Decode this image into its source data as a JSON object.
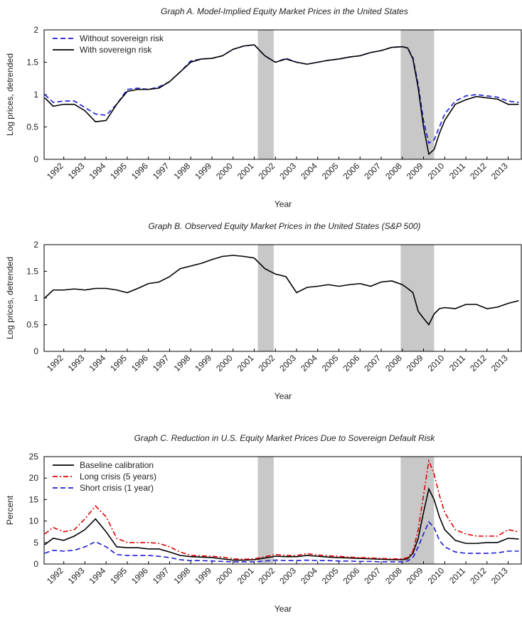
{
  "chart_data": [
    {
      "type": "line",
      "title": "Graph A. Model-Implied Equity Market Prices in the United States",
      "x_label": "Year",
      "y_label": "Log prices, detrended",
      "x": [
        1991.1,
        1991.5,
        1992,
        1992.5,
        1993,
        1993.5,
        1994,
        1994.5,
        1995,
        1995.5,
        1996,
        1996.5,
        1997,
        1997.5,
        1998,
        1998.5,
        1999,
        1999.5,
        2000,
        2000.5,
        2001,
        2001.5,
        2002,
        2002.5,
        2003,
        2003.5,
        2004,
        2004.5,
        2005,
        2005.5,
        2006,
        2006.5,
        2007,
        2007.5,
        2008,
        2008.25,
        2008.5,
        2008.75,
        2009,
        2009.25,
        2009.5,
        2009.75,
        2010,
        2010.5,
        2011,
        2011.5,
        2012,
        2012.5,
        2013,
        2013.5
      ],
      "series": [
        {
          "name": "Without sovereign risk",
          "color": "#1a1ad6",
          "style": "dashed",
          "values": [
            1.0,
            0.88,
            0.9,
            0.9,
            0.8,
            0.7,
            0.68,
            0.85,
            1.08,
            1.1,
            1.08,
            1.12,
            1.2,
            1.35,
            1.52,
            1.55,
            1.56,
            1.6,
            1.7,
            1.75,
            1.77,
            1.6,
            1.5,
            1.56,
            1.5,
            1.47,
            1.5,
            1.53,
            1.55,
            1.58,
            1.6,
            1.65,
            1.68,
            1.73,
            1.74,
            1.72,
            1.57,
            1.15,
            0.6,
            0.25,
            0.3,
            0.5,
            0.7,
            0.9,
            0.98,
            1.0,
            0.98,
            0.96,
            0.9,
            0.88
          ]
        },
        {
          "name": "With sovereign risk",
          "color": "#000000",
          "style": "solid",
          "values": [
            0.95,
            0.82,
            0.85,
            0.85,
            0.75,
            0.58,
            0.6,
            0.85,
            1.05,
            1.08,
            1.08,
            1.1,
            1.2,
            1.35,
            1.5,
            1.55,
            1.56,
            1.6,
            1.7,
            1.75,
            1.77,
            1.6,
            1.5,
            1.55,
            1.5,
            1.47,
            1.5,
            1.53,
            1.55,
            1.58,
            1.6,
            1.65,
            1.68,
            1.73,
            1.74,
            1.72,
            1.55,
            1.1,
            0.5,
            0.08,
            0.15,
            0.4,
            0.6,
            0.85,
            0.92,
            0.97,
            0.95,
            0.93,
            0.85,
            0.85
          ]
        }
      ],
      "xlim": [
        1991.07,
        2013.62
      ],
      "xticks": [
        1992,
        1993,
        1994,
        1995,
        1996,
        1997,
        1998,
        1999,
        2000,
        2001,
        2002,
        2003,
        2004,
        2005,
        2006,
        2007,
        2008,
        2009,
        2010,
        2011,
        2012,
        2013
      ],
      "ylim": [
        0,
        2
      ],
      "yticks": [
        0,
        0.5,
        1,
        1.5,
        2
      ],
      "legend": "upper left",
      "shaded_regions": [
        [
          2001.17,
          2001.92
        ],
        [
          2007.92,
          2009.5
        ]
      ],
      "shade_color": "#c8c8c8"
    },
    {
      "type": "line",
      "title": "Graph B. Observed Equity Market Prices in the United States (S&P 500)",
      "x_label": "Year",
      "y_label": "Log prices, detrended",
      "x": [
        1991.1,
        1991.5,
        1992,
        1992.5,
        1993,
        1993.5,
        1994,
        1994.5,
        1995,
        1995.5,
        1996,
        1996.5,
        1997,
        1997.5,
        1998,
        1998.5,
        1999,
        1999.5,
        2000,
        2000.5,
        2001,
        2001.5,
        2002,
        2002.5,
        2003,
        2003.5,
        2004,
        2004.5,
        2005,
        2005.5,
        2006,
        2006.5,
        2007,
        2007.5,
        2008,
        2008.25,
        2008.5,
        2008.75,
        2009,
        2009.25,
        2009.5,
        2009.75,
        2010,
        2010.5,
        2011,
        2011.5,
        2012,
        2012.5,
        2013,
        2013.5
      ],
      "series": [
        {
          "color": "#000000",
          "style": "solid",
          "values": [
            1.0,
            1.15,
            1.15,
            1.17,
            1.15,
            1.18,
            1.18,
            1.15,
            1.1,
            1.18,
            1.27,
            1.3,
            1.4,
            1.55,
            1.6,
            1.65,
            1.72,
            1.78,
            1.8,
            1.78,
            1.75,
            1.55,
            1.45,
            1.4,
            1.1,
            1.2,
            1.22,
            1.25,
            1.22,
            1.25,
            1.27,
            1.22,
            1.3,
            1.32,
            1.25,
            1.18,
            1.1,
            0.75,
            0.62,
            0.5,
            0.7,
            0.8,
            0.82,
            0.8,
            0.88,
            0.88,
            0.8,
            0.83,
            0.9,
            0.95
          ]
        }
      ],
      "xlim": [
        1991.07,
        2013.62
      ],
      "xticks": [
        1992,
        1993,
        1994,
        1995,
        1996,
        1997,
        1998,
        1999,
        2000,
        2001,
        2002,
        2003,
        2004,
        2005,
        2006,
        2007,
        2008,
        2009,
        2010,
        2011,
        2012,
        2013
      ],
      "ylim": [
        0,
        2
      ],
      "yticks": [
        0,
        0.5,
        1,
        1.5,
        2
      ],
      "shaded_regions": [
        [
          2001.17,
          2001.92
        ],
        [
          2007.92,
          2009.5
        ]
      ],
      "shade_color": "#c8c8c8"
    },
    {
      "type": "line",
      "title": "Graph C. Reduction in U.S. Equity Market Prices Due to Sovereign Default Risk",
      "x_label": "Year",
      "y_label": "Percent",
      "x": [
        1991.1,
        1991.5,
        1992,
        1992.5,
        1993,
        1993.5,
        1994,
        1994.5,
        1995,
        1995.5,
        1996,
        1996.5,
        1997,
        1997.5,
        1998,
        1998.5,
        1999,
        1999.5,
        2000,
        2000.5,
        2001,
        2001.5,
        2002,
        2002.5,
        2003,
        2003.5,
        2004,
        2004.5,
        2005,
        2005.5,
        2006,
        2006.5,
        2007,
        2007.5,
        2008,
        2008.25,
        2008.5,
        2008.75,
        2009,
        2009.25,
        2009.5,
        2009.75,
        2010,
        2010.5,
        2011,
        2011.5,
        2012,
        2012.5,
        2013,
        2013.5
      ],
      "series": [
        {
          "name": "Baseline calibration",
          "color": "#000000",
          "style": "solid",
          "values": [
            4.5,
            6,
            5.5,
            6.5,
            8,
            10.5,
            7.5,
            4,
            3.8,
            3.8,
            3.5,
            3.5,
            2.8,
            2,
            1.7,
            1.6,
            1.5,
            1.2,
            0.9,
            0.9,
            1.0,
            1.4,
            1.8,
            1.7,
            1.7,
            2.0,
            1.8,
            1.6,
            1.5,
            1.4,
            1.3,
            1.2,
            1.1,
            1.0,
            1.0,
            1.2,
            2.5,
            6,
            12,
            17.5,
            15,
            11,
            8,
            5.5,
            4.8,
            4.8,
            5,
            5,
            6,
            5.8
          ]
        },
        {
          "name": "Long crisis (5 years)",
          "color": "#e00000",
          "style": "dashdot",
          "values": [
            7,
            8.5,
            7.5,
            8,
            10.5,
            13.5,
            11,
            6,
            5,
            5,
            5,
            4.8,
            4,
            2.8,
            2,
            1.9,
            1.8,
            1.6,
            1.2,
            1.1,
            1.2,
            1.7,
            2.2,
            2.0,
            2.0,
            2.4,
            2.1,
            1.9,
            1.8,
            1.6,
            1.5,
            1.4,
            1.3,
            1.2,
            1.2,
            1.5,
            3,
            8,
            16,
            24,
            21,
            16,
            12,
            8,
            7,
            6.5,
            6.5,
            6.5,
            8,
            7.5
          ]
        },
        {
          "name": "Short crisis (1 year)",
          "color": "#1a1ad6",
          "style": "dashed",
          "values": [
            2.5,
            3.2,
            3,
            3.2,
            4,
            5.2,
            4,
            2.2,
            2,
            2,
            2,
            1.8,
            1.5,
            1,
            0.8,
            0.8,
            0.7,
            0.6,
            0.5,
            0.5,
            0.5,
            0.7,
            0.9,
            0.8,
            0.8,
            0.9,
            0.8,
            0.8,
            0.7,
            0.7,
            0.6,
            0.6,
            0.5,
            0.5,
            0.5,
            0.7,
            1.5,
            4,
            7,
            9.8,
            8.5,
            5.5,
            4,
            2.8,
            2.5,
            2.5,
            2.5,
            2.6,
            3,
            3
          ]
        }
      ],
      "xlim": [
        1991.07,
        2013.62
      ],
      "xticks": [
        1992,
        1993,
        1994,
        1995,
        1996,
        1997,
        1998,
        1999,
        2000,
        2001,
        2002,
        2003,
        2004,
        2005,
        2006,
        2007,
        2008,
        2009,
        2010,
        2011,
        2012,
        2013
      ],
      "ylim": [
        0,
        25
      ],
      "yticks": [
        0,
        5,
        10,
        15,
        20,
        25
      ],
      "legend": "upper left",
      "shaded_regions": [
        [
          2001.17,
          2001.92
        ],
        [
          2007.92,
          2009.5
        ]
      ],
      "shade_color": "#c8c8c8"
    }
  ]
}
